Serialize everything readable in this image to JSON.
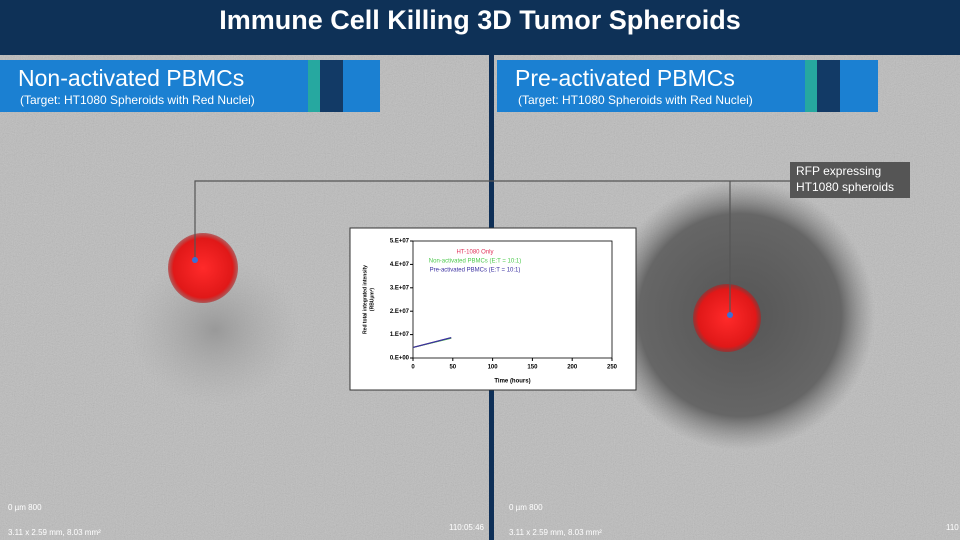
{
  "title": "Immune Cell Killing 3D Tumor Spheroids",
  "panels": [
    {
      "title": "Non-activated PBMCs",
      "subtitle": "(Target: HT1080 Spheroids with Red Nuclei)",
      "scale_label": "0 µm 800",
      "dimensions": "3.11 x 2.59 mm, 8.03 mm²",
      "timestamp": "110:05:46"
    },
    {
      "title": "Pre-activated PBMCs",
      "subtitle": "(Target: HT1080 Spheroids with Red Nuclei)",
      "scale_label": "0 µm 800",
      "dimensions": "3.11 x 2.59 mm, 8.03 mm²",
      "timestamp": "110"
    }
  ],
  "callout": [
    "RFP expressing",
    "HT1080 spheroids"
  ],
  "chart_data": {
    "type": "line",
    "x_label": "Time (hours)",
    "y_label": [
      "Red total integrated intensity",
      "(RBUµm²)"
    ],
    "x": [
      0,
      48
    ],
    "series": [
      {
        "name": "HT-1080 Only",
        "color": "#e0325a",
        "values": [
          4500000,
          8600000
        ]
      },
      {
        "name": "Non-activated PBMCs (E:T = 10:1)",
        "color": "#4cc94c",
        "values": [
          4500000,
          8500000
        ]
      },
      {
        "name": "Pre-activated PBMCs (E:T = 10:1)",
        "color": "#3a2fa0",
        "values": [
          4500000,
          8700000
        ]
      }
    ],
    "xlim": [
      0,
      250
    ],
    "xticks": [
      0,
      50,
      100,
      150,
      200,
      250
    ],
    "ylim": [
      0,
      50000000
    ],
    "yticks": [
      {
        "value": 0,
        "label": "0.E+00"
      },
      {
        "value": 10000000,
        "label": "1.E+07"
      },
      {
        "value": 20000000,
        "label": "2.E+07"
      },
      {
        "value": 30000000,
        "label": "3.E+07"
      },
      {
        "value": 40000000,
        "label": "4.E+07"
      },
      {
        "value": 50000000,
        "label": "5.E+07"
      }
    ]
  }
}
